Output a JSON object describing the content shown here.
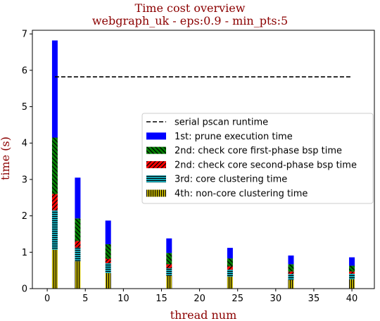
{
  "chart_data": {
    "type": "bar",
    "stacked": true,
    "title": [
      "Time cost overview",
      "webgraph_uk - eps:0.9 - min_pts:5"
    ],
    "title_color": "#8b0000",
    "xlabel": "thread num",
    "ylabel": "time (s)",
    "label_color": "#8b0000",
    "xlim": [
      -1.95,
      42.95
    ],
    "ylim": [
      0,
      7.1
    ],
    "xticks": [
      0,
      5,
      10,
      15,
      20,
      25,
      30,
      35,
      40
    ],
    "yticks": [
      0,
      1,
      2,
      3,
      4,
      5,
      6,
      7
    ],
    "x": [
      1,
      4,
      8,
      16,
      24,
      32,
      40
    ],
    "legend_position": "center-right",
    "baseline": {
      "name": "serial pscan runtime",
      "value": 5.82,
      "x_range": [
        1,
        40
      ],
      "style": "dashed",
      "color": "#000000"
    },
    "series": [
      {
        "name": "4th: non-core clustering time",
        "color": "#d4c400",
        "hatch": "vertical",
        "values": [
          1.07,
          0.75,
          0.43,
          0.35,
          0.33,
          0.24,
          0.26
        ]
      },
      {
        "name": "3rd: core clustering time",
        "color": "#17becf",
        "hatch": "horizontal",
        "values": [
          1.08,
          0.38,
          0.27,
          0.21,
          0.19,
          0.16,
          0.15
        ]
      },
      {
        "name": "2nd: check core second-phase bsp time",
        "color": "#ff0000",
        "hatch": "diagonal",
        "values": [
          0.45,
          0.18,
          0.12,
          0.11,
          0.09,
          0.07,
          0.06
        ]
      },
      {
        "name": "2nd: check core first-phase bsp time",
        "color": "#008000",
        "hatch": "backdiagonal",
        "values": [
          1.55,
          0.62,
          0.4,
          0.31,
          0.22,
          0.2,
          0.16
        ]
      },
      {
        "name": "1st: prune execution time",
        "color": "#0000ff",
        "hatch": "none",
        "values": [
          2.67,
          1.12,
          0.65,
          0.4,
          0.29,
          0.24,
          0.23
        ]
      }
    ],
    "legend_order": [
      "serial pscan runtime",
      "1st: prune execution time",
      "2nd: check core first-phase bsp time",
      "2nd: check core second-phase bsp time",
      "3rd: core clustering time",
      "4th: non-core clustering time"
    ]
  }
}
